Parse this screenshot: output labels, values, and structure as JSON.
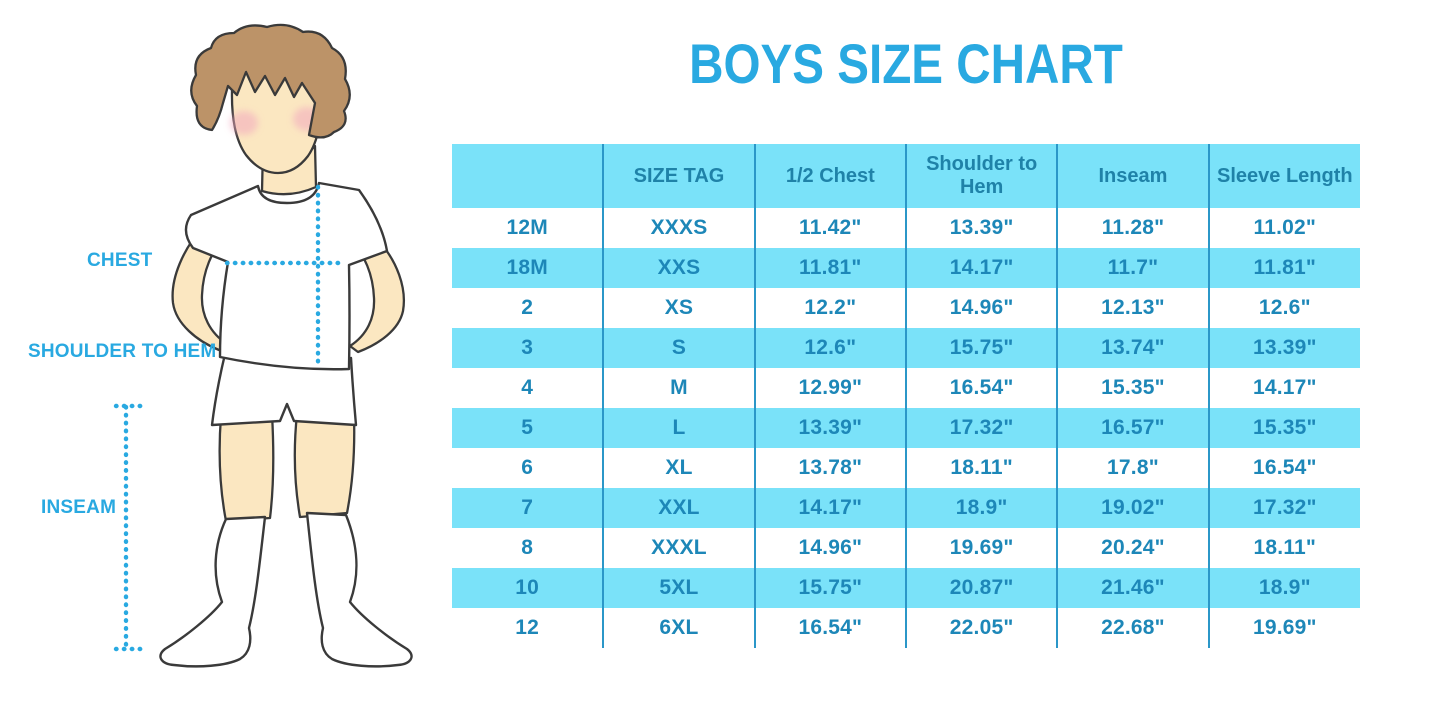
{
  "title": {
    "text": "BOYS SIZE CHART"
  },
  "figure": {
    "illustration": "cartoon-boy-front-white-tshirt-shorts-knee-socks",
    "labels": {
      "chest": "CHEST",
      "shoulder_to_hem": "SHOULDER TO HEM",
      "inseam": "INSEAM"
    }
  },
  "table": {
    "columns": [
      "",
      "SIZE TAG",
      "1/2 Chest",
      "Shoulder to Hem",
      "Inseam",
      "Sleeve Length"
    ],
    "rows": [
      [
        "12M",
        "XXXS",
        "11.42\"",
        "13.39\"",
        "11.28\"",
        "11.02\""
      ],
      [
        "18M",
        "XXS",
        "11.81\"",
        "14.17\"",
        "11.7\"",
        "11.81\""
      ],
      [
        "2",
        "XS",
        "12.2\"",
        "14.96\"",
        "12.13\"",
        "12.6\""
      ],
      [
        "3",
        "S",
        "12.6\"",
        "15.75\"",
        "13.74\"",
        "13.39\""
      ],
      [
        "4",
        "M",
        "12.99\"",
        "16.54\"",
        "15.35\"",
        "14.17\""
      ],
      [
        "5",
        "L",
        "13.39\"",
        "17.32\"",
        "16.57\"",
        "15.35\""
      ],
      [
        "6",
        "XL",
        "13.78\"",
        "18.11\"",
        "17.8\"",
        "16.54\""
      ],
      [
        "7",
        "XXL",
        "14.17\"",
        "18.9\"",
        "19.02\"",
        "17.32\""
      ],
      [
        "8",
        "XXXL",
        "14.96\"",
        "19.69\"",
        "20.24\"",
        "18.11\""
      ],
      [
        "10",
        "5XL",
        "15.75\"",
        "20.87\"",
        "21.46\"",
        "18.9\""
      ],
      [
        "12",
        "6XL",
        "16.54\"",
        "22.05\"",
        "22.68\"",
        "19.69\""
      ]
    ]
  },
  "colors": {
    "accent_blue": "#29A9E1",
    "stripe_cyan": "#7AE2F9",
    "table_text": "#1D87B8",
    "header_text": "#1F82A8",
    "divider": "#2B97C8",
    "skin": "#FBE7C1",
    "hair": "#BC9368",
    "cheek": "#F2A8BE",
    "outline": "#3A3A3A"
  }
}
